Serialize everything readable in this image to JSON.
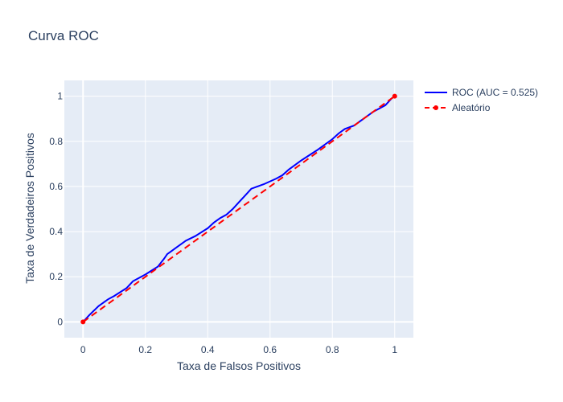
{
  "chart_data": {
    "type": "line",
    "title": "Curva ROC",
    "xlabel": "Taxa de Falsos Positivos",
    "ylabel": "Taxa de Verdadeiros Positivos",
    "xlim": [
      -0.06,
      1.06
    ],
    "ylim": [
      -0.07,
      1.07
    ],
    "x_ticks": [
      0,
      0.2,
      0.4,
      0.6,
      0.8,
      1
    ],
    "x_tick_labels": [
      "0",
      "0.2",
      "0.4",
      "0.6",
      "0.8",
      "1"
    ],
    "y_ticks": [
      0,
      0.2,
      0.4,
      0.6,
      0.8,
      1
    ],
    "y_tick_labels": [
      "0",
      "0.2",
      "0.4",
      "0.6",
      "0.8",
      "1"
    ],
    "grid": true,
    "legend_position": "top-right, outside plot",
    "plot_background": "#e5ecf6",
    "series": [
      {
        "name": "ROC (AUC = 0.525)",
        "color": "#0000ff",
        "dash": "solid",
        "markers": false,
        "x": [
          0,
          0.02,
          0.05,
          0.08,
          0.1,
          0.14,
          0.16,
          0.2,
          0.24,
          0.26,
          0.27,
          0.28,
          0.3,
          0.33,
          0.36,
          0.4,
          0.42,
          0.44,
          0.46,
          0.48,
          0.5,
          0.52,
          0.54,
          0.58,
          0.62,
          0.64,
          0.66,
          0.7,
          0.75,
          0.8,
          0.82,
          0.84,
          0.87,
          0.9,
          0.93,
          0.97,
          0.99,
          1
        ],
        "y": [
          0,
          0.03,
          0.07,
          0.1,
          0.115,
          0.15,
          0.18,
          0.21,
          0.245,
          0.28,
          0.3,
          0.31,
          0.33,
          0.36,
          0.38,
          0.415,
          0.44,
          0.46,
          0.475,
          0.5,
          0.53,
          0.56,
          0.59,
          0.61,
          0.635,
          0.65,
          0.675,
          0.715,
          0.76,
          0.81,
          0.835,
          0.855,
          0.87,
          0.9,
          0.93,
          0.96,
          0.99,
          1
        ]
      },
      {
        "name": "Aleatório",
        "color": "#ff0000",
        "dash": "dash",
        "markers": true,
        "x": [
          0,
          1
        ],
        "y": [
          0,
          1
        ]
      }
    ]
  }
}
